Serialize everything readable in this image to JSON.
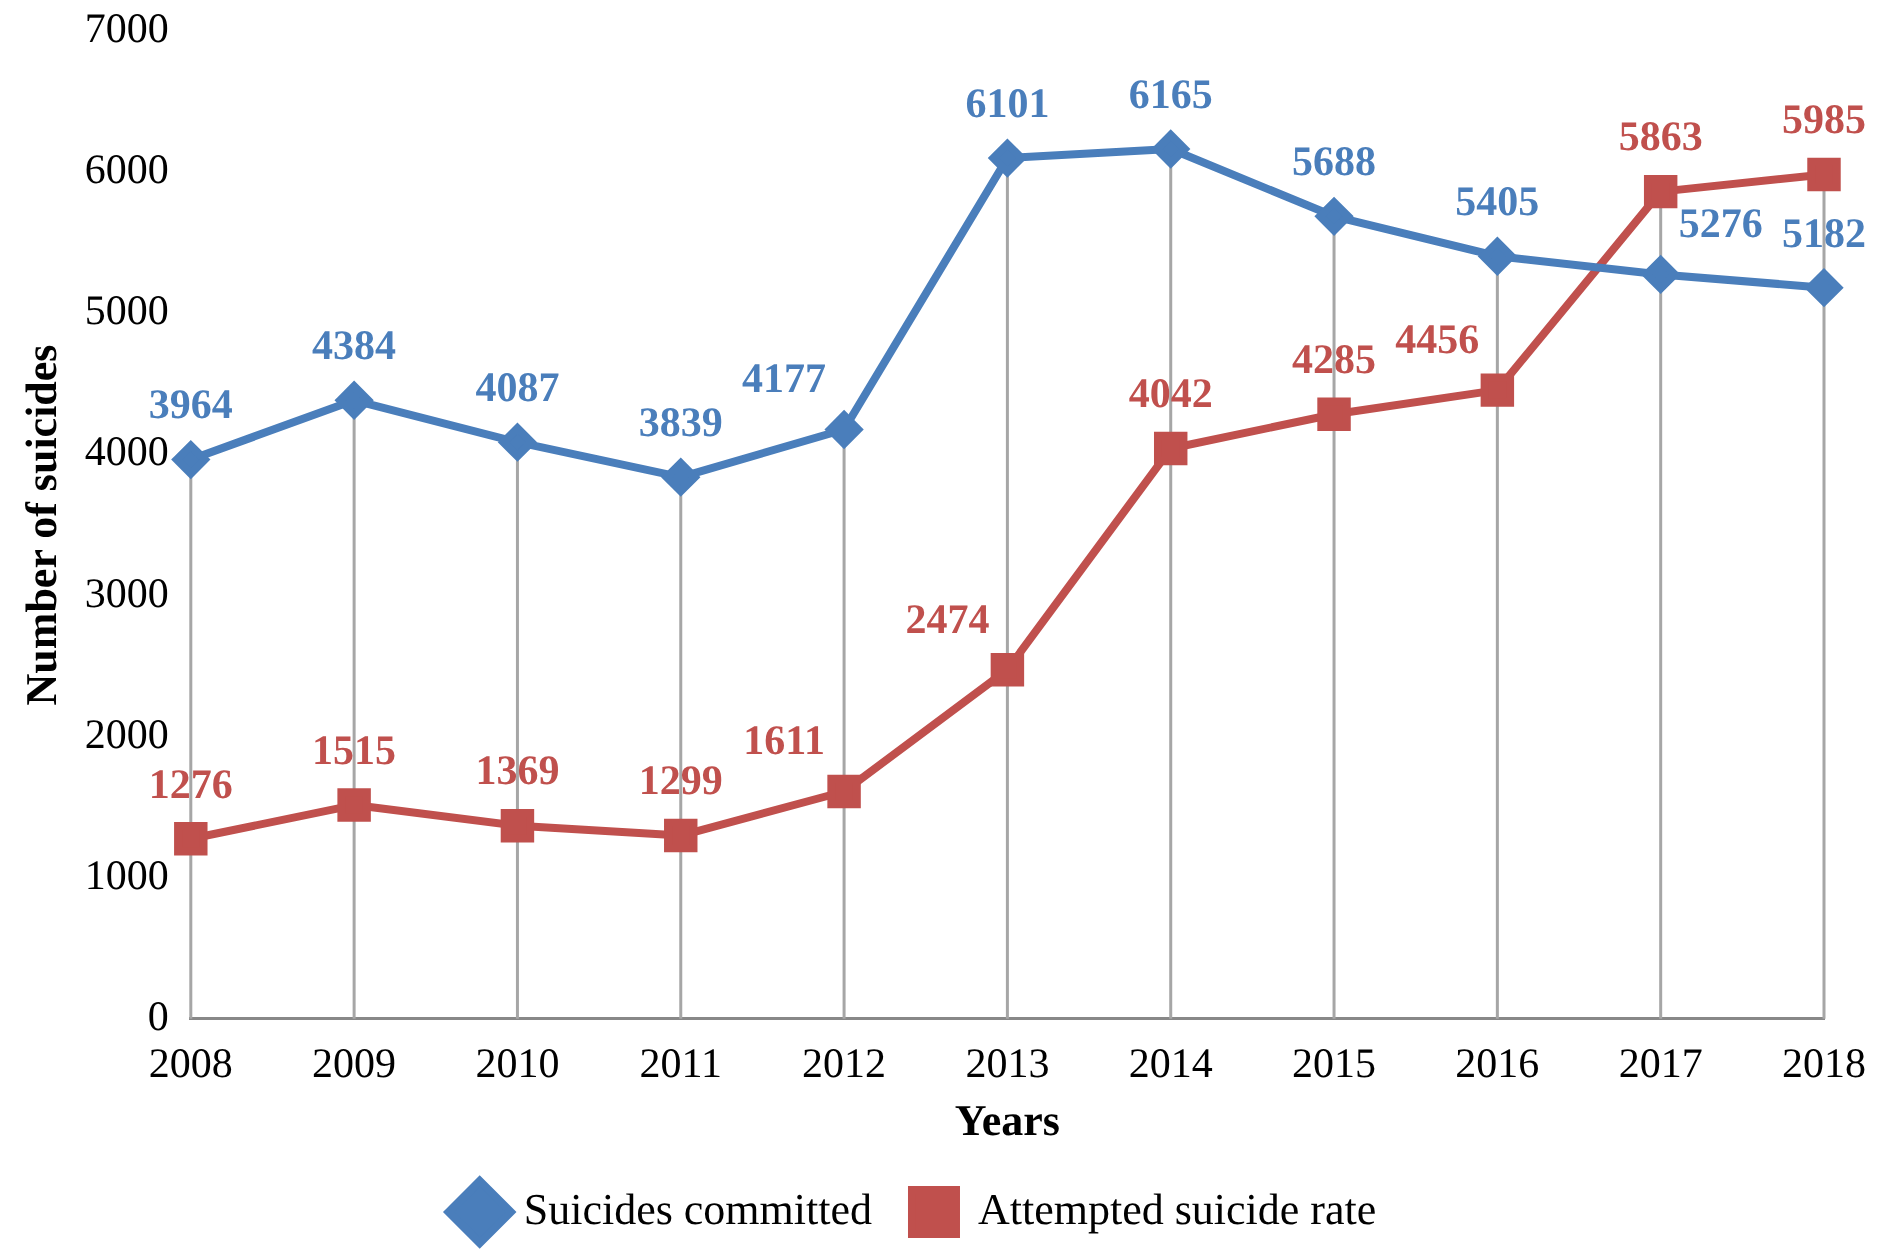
{
  "chart_data": {
    "type": "line",
    "xlabel": "Years",
    "ylabel": "Number of suicides",
    "categories": [
      "2008",
      "2009",
      "2010",
      "2011",
      "2012",
      "2013",
      "2014",
      "2015",
      "2016",
      "2017",
      "2018"
    ],
    "series": [
      {
        "name": "Suicides committed",
        "color": "#4a7ebb",
        "marker": "diamond",
        "values": [
          3964,
          4384,
          4087,
          3839,
          4177,
          6101,
          6165,
          5688,
          5405,
          5276,
          5182
        ]
      },
      {
        "name": "Attempted suicide rate",
        "color": "#c0504d",
        "marker": "square",
        "values": [
          1276,
          1515,
          1369,
          1299,
          1611,
          2474,
          4042,
          4285,
          4456,
          5863,
          5985
        ]
      }
    ],
    "ylim": [
      0,
      7000
    ],
    "yticks": [
      0,
      1000,
      2000,
      3000,
      4000,
      5000,
      6000,
      7000
    ],
    "grid": "x",
    "legend": "bottom",
    "data_labels": true
  }
}
